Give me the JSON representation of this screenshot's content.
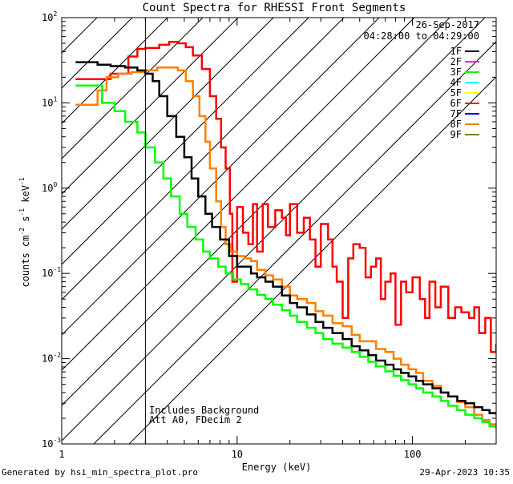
{
  "chart_data": {
    "type": "line",
    "title": "Count Spectra for RHESSI Front Segments",
    "date": "26-Sep-2017",
    "time_range": "04:28:00 to 04:29:00",
    "xlabel": "Energy (keV)",
    "ylabel_parts": [
      "counts cm",
      "-2",
      " s",
      "-1",
      " keV",
      "-1"
    ],
    "xscale": "log",
    "yscale": "log",
    "xlim": [
      1,
      300
    ],
    "ylim": [
      0.001,
      100
    ],
    "x_tick_labels": [
      {
        "value": 1,
        "label": "1"
      },
      {
        "value": 10,
        "label": "10"
      },
      {
        "value": 100,
        "label": "100"
      }
    ],
    "y_tick_labels": [
      {
        "value": 100,
        "base": "10",
        "exp": "2"
      },
      {
        "value": 10,
        "base": "10",
        "exp": "1"
      },
      {
        "value": 1,
        "base": "10",
        "exp": "0"
      },
      {
        "value": 0.1,
        "base": "10",
        "exp": "-1"
      },
      {
        "value": 0.01,
        "base": "10",
        "exp": "-2"
      },
      {
        "value": 0.001,
        "base": "10",
        "exp": "-3"
      }
    ],
    "hatched_region_below_kev": 3,
    "annotations": [
      "Includes Background",
      "Att A0, FDecim 2"
    ],
    "legend": [
      {
        "label": "1F",
        "color": "#000000"
      },
      {
        "label": "2F",
        "color": "#ff00ff"
      },
      {
        "label": "3F",
        "color": "#00ff00"
      },
      {
        "label": "4F",
        "color": "#00ffff"
      },
      {
        "label": "5F",
        "color": "#ffff00"
      },
      {
        "label": "6F",
        "color": "#ff0000"
      },
      {
        "label": "7F",
        "color": "#0000ff"
      },
      {
        "label": "8F",
        "color": "#ff8000"
      },
      {
        "label": "9F",
        "color": "#808000"
      }
    ],
    "series": [
      {
        "name": "6F",
        "color": "#ff0000",
        "points": [
          [
            1.2,
            19
          ],
          [
            1.7,
            19
          ],
          [
            1.9,
            22
          ],
          [
            2.4,
            35
          ],
          [
            2.7,
            43
          ],
          [
            3.0,
            44
          ],
          [
            3.6,
            48
          ],
          [
            4.1,
            52
          ],
          [
            4.6,
            50
          ],
          [
            5.1,
            45
          ],
          [
            5.6,
            36
          ],
          [
            6.3,
            25
          ],
          [
            7.0,
            12
          ],
          [
            7.6,
            6.5
          ],
          [
            8.1,
            3.0
          ],
          [
            8.6,
            1.7
          ],
          [
            9.1,
            0.5
          ],
          [
            9.4,
            0.08
          ],
          [
            10.0,
            0.6
          ],
          [
            10.8,
            0.3
          ],
          [
            11.6,
            0.22
          ],
          [
            12.3,
            0.65
          ],
          [
            13.0,
            0.18
          ],
          [
            14.0,
            0.65
          ],
          [
            15.0,
            0.35
          ],
          [
            16.5,
            0.55
          ],
          [
            18.0,
            0.45
          ],
          [
            19.0,
            0.28
          ],
          [
            20.0,
            0.65
          ],
          [
            22.0,
            0.3
          ],
          [
            24.0,
            0.45
          ],
          [
            26.0,
            0.25
          ],
          [
            28.0,
            0.12
          ],
          [
            30.0,
            0.38
          ],
          [
            33.0,
            0.25
          ],
          [
            35.0,
            0.12
          ],
          [
            37.0,
            0.08
          ],
          [
            40.0,
            0.03
          ],
          [
            43.0,
            0.15
          ],
          [
            46.0,
            0.22
          ],
          [
            50.0,
            0.2
          ],
          [
            54.0,
            0.09
          ],
          [
            58.0,
            0.12
          ],
          [
            62.0,
            0.15
          ],
          [
            66.0,
            0.05
          ],
          [
            70.0,
            0.08
          ],
          [
            75.0,
            0.1
          ],
          [
            80.0,
            0.025
          ],
          [
            86.0,
            0.08
          ],
          [
            92.0,
            0.06
          ],
          [
            100.0,
            0.09
          ],
          [
            110.0,
            0.05
          ],
          [
            118.0,
            0.03
          ],
          [
            125.0,
            0.08
          ],
          [
            135.0,
            0.04
          ],
          [
            145.0,
            0.07
          ],
          [
            160.0,
            0.03
          ],
          [
            175.0,
            0.04
          ],
          [
            190.0,
            0.035
          ],
          [
            210.0,
            0.03
          ],
          [
            225.0,
            0.04
          ],
          [
            240.0,
            0.02
          ],
          [
            260.0,
            0.03
          ],
          [
            280.0,
            0.012
          ],
          [
            300.0,
            0.015
          ]
        ]
      },
      {
        "name": "8F",
        "color": "#ff8000",
        "points": [
          [
            1.2,
            9.5
          ],
          [
            1.5,
            9.5
          ],
          [
            1.6,
            14
          ],
          [
            1.8,
            20
          ],
          [
            2.1,
            22
          ],
          [
            2.5,
            23
          ],
          [
            3.0,
            24
          ],
          [
            3.5,
            26
          ],
          [
            4.1,
            26
          ],
          [
            4.6,
            24
          ],
          [
            5.1,
            18
          ],
          [
            5.6,
            12
          ],
          [
            6.1,
            7
          ],
          [
            6.6,
            3.5
          ],
          [
            7.0,
            1.7
          ],
          [
            7.6,
            0.7
          ],
          [
            8.1,
            0.35
          ],
          [
            8.6,
            0.22
          ],
          [
            9.2,
            0.18
          ],
          [
            10.0,
            0.16
          ],
          [
            11.0,
            0.15
          ],
          [
            12.0,
            0.14
          ],
          [
            13.0,
            0.11
          ],
          [
            14.5,
            0.095
          ],
          [
            16.0,
            0.085
          ],
          [
            18.0,
            0.07
          ],
          [
            20.0,
            0.055
          ],
          [
            22.0,
            0.05
          ],
          [
            25.0,
            0.045
          ],
          [
            28.0,
            0.036
          ],
          [
            31.0,
            0.032
          ],
          [
            35.0,
            0.026
          ],
          [
            40.0,
            0.024
          ],
          [
            45.0,
            0.019
          ],
          [
            50.0,
            0.016
          ],
          [
            56.0,
            0.016
          ],
          [
            62.0,
            0.013
          ],
          [
            70.0,
            0.012
          ],
          [
            78.0,
            0.01
          ],
          [
            86.0,
            0.0085
          ],
          [
            95.0,
            0.0075
          ],
          [
            105.0,
            0.0068
          ],
          [
            115.0,
            0.0055
          ],
          [
            130.0,
            0.0048
          ],
          [
            145.0,
            0.004
          ],
          [
            160.0,
            0.0036
          ],
          [
            180.0,
            0.0031
          ],
          [
            200.0,
            0.0027
          ],
          [
            225.0,
            0.0022
          ],
          [
            250.0,
            0.0019
          ],
          [
            275.0,
            0.0017
          ],
          [
            300.0,
            0.0015
          ]
        ]
      },
      {
        "name": "1F",
        "color": "#000000",
        "points": [
          [
            1.2,
            30
          ],
          [
            1.6,
            28
          ],
          [
            1.9,
            27
          ],
          [
            2.3,
            26
          ],
          [
            2.7,
            24
          ],
          [
            3.0,
            22
          ],
          [
            3.3,
            18
          ],
          [
            3.6,
            12
          ],
          [
            4.0,
            7
          ],
          [
            4.5,
            4
          ],
          [
            5.0,
            2.3
          ],
          [
            5.5,
            1.3
          ],
          [
            6.0,
            0.8
          ],
          [
            6.6,
            0.5
          ],
          [
            7.2,
            0.35
          ],
          [
            8.0,
            0.25
          ],
          [
            9.0,
            0.16
          ],
          [
            10.0,
            0.12
          ],
          [
            11.0,
            0.12
          ],
          [
            12.0,
            0.1
          ],
          [
            13.0,
            0.09
          ],
          [
            14.5,
            0.08
          ],
          [
            16.0,
            0.07
          ],
          [
            18.0,
            0.055
          ],
          [
            20.0,
            0.045
          ],
          [
            22.0,
            0.04
          ],
          [
            25.0,
            0.033
          ],
          [
            28.0,
            0.027
          ],
          [
            31.0,
            0.023
          ],
          [
            35.0,
            0.02
          ],
          [
            40.0,
            0.017
          ],
          [
            45.0,
            0.014
          ],
          [
            50.0,
            0.0125
          ],
          [
            56.0,
            0.011
          ],
          [
            62.0,
            0.0095
          ],
          [
            70.0,
            0.0085
          ],
          [
            78.0,
            0.0075
          ],
          [
            86.0,
            0.0068
          ],
          [
            95.0,
            0.0062
          ],
          [
            105.0,
            0.0055
          ],
          [
            115.0,
            0.005
          ],
          [
            130.0,
            0.0045
          ],
          [
            145.0,
            0.004
          ],
          [
            160.0,
            0.0036
          ],
          [
            180.0,
            0.0032
          ],
          [
            200.0,
            0.003
          ],
          [
            225.0,
            0.0027
          ],
          [
            250.0,
            0.0025
          ],
          [
            275.0,
            0.0023
          ],
          [
            300.0,
            0.0022
          ]
        ]
      },
      {
        "name": "3F",
        "color": "#00ff00",
        "points": [
          [
            1.2,
            16
          ],
          [
            1.5,
            16
          ],
          [
            1.7,
            10
          ],
          [
            2.0,
            8
          ],
          [
            2.3,
            6
          ],
          [
            2.7,
            4.5
          ],
          [
            3.0,
            3
          ],
          [
            3.4,
            2
          ],
          [
            3.8,
            1.3
          ],
          [
            4.2,
            0.8
          ],
          [
            4.7,
            0.5
          ],
          [
            5.2,
            0.35
          ],
          [
            5.8,
            0.25
          ],
          [
            6.4,
            0.18
          ],
          [
            7.0,
            0.15
          ],
          [
            7.8,
            0.12
          ],
          [
            8.6,
            0.1
          ],
          [
            9.5,
            0.085
          ],
          [
            10.5,
            0.075
          ],
          [
            11.6,
            0.065
          ],
          [
            13.0,
            0.056
          ],
          [
            14.5,
            0.05
          ],
          [
            16.0,
            0.043
          ],
          [
            18.0,
            0.037
          ],
          [
            20.0,
            0.032
          ],
          [
            22.0,
            0.027
          ],
          [
            25.0,
            0.023
          ],
          [
            28.0,
            0.02
          ],
          [
            31.0,
            0.017
          ],
          [
            35.0,
            0.015
          ],
          [
            40.0,
            0.0135
          ],
          [
            45.0,
            0.012
          ],
          [
            50.0,
            0.0105
          ],
          [
            56.0,
            0.0092
          ],
          [
            62.0,
            0.0081
          ],
          [
            70.0,
            0.0071
          ],
          [
            78.0,
            0.0063
          ],
          [
            86.0,
            0.0056
          ],
          [
            95.0,
            0.005
          ],
          [
            105.0,
            0.0045
          ],
          [
            115.0,
            0.004
          ],
          [
            130.0,
            0.0036
          ],
          [
            145.0,
            0.0032
          ],
          [
            160.0,
            0.0028
          ],
          [
            180.0,
            0.0025
          ],
          [
            200.0,
            0.0022
          ],
          [
            225.0,
            0.002
          ],
          [
            250.0,
            0.0018
          ],
          [
            275.0,
            0.0016
          ],
          [
            300.0,
            0.0015
          ]
        ]
      }
    ]
  },
  "footer": {
    "left": "Generated by hsi_min_spectra_plot.pro",
    "right": "29-Apr-2023 10:35"
  }
}
